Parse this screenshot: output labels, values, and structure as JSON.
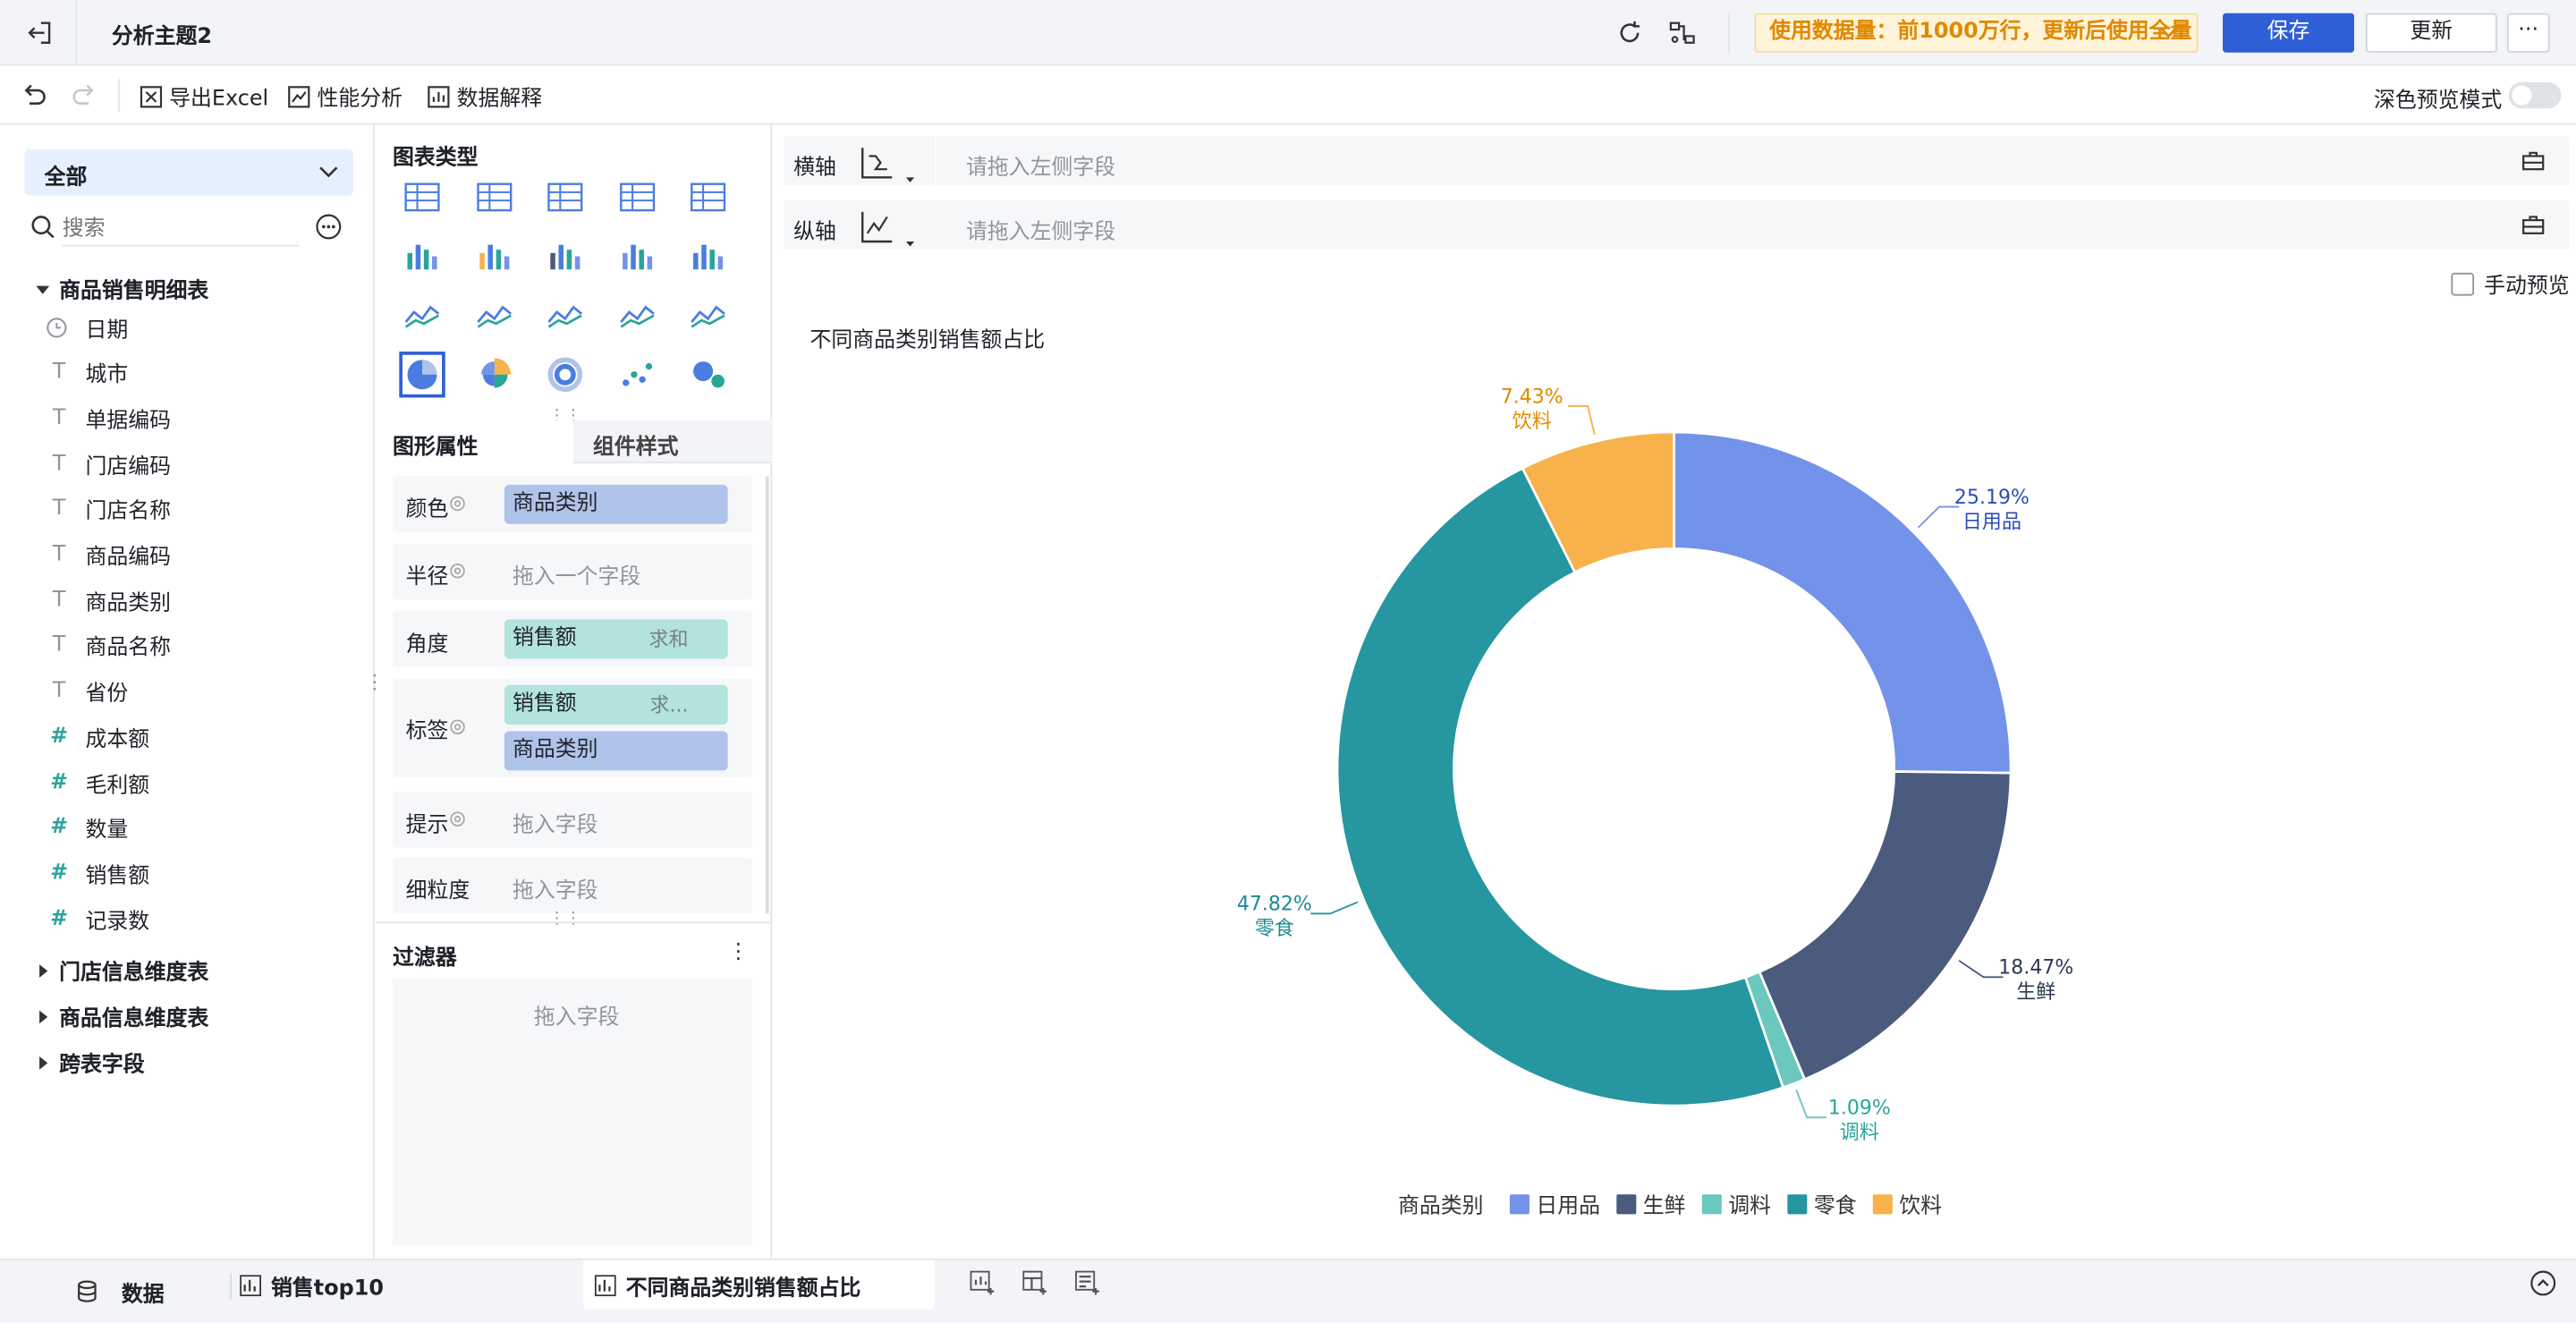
{
  "topbar": {
    "title": "分析主题2",
    "notice": "使用数据量：前1000万行，更新后使用全量",
    "save": "保存",
    "update": "更新",
    "more": "···"
  },
  "toolbar": {
    "export": "导出Excel",
    "perf": "性能分析",
    "explain": "数据解释",
    "dark_preview": "深色预览模式"
  },
  "left": {
    "scope": "全部",
    "search_placeholder": "搜索",
    "table1": "商品销售明细表",
    "fields": [
      {
        "name": "日期",
        "type": "date"
      },
      {
        "name": "城市",
        "type": "text"
      },
      {
        "name": "单据编码",
        "type": "text"
      },
      {
        "name": "门店编码",
        "type": "text"
      },
      {
        "name": "门店名称",
        "type": "text"
      },
      {
        "name": "商品编码",
        "type": "text"
      },
      {
        "name": "商品类别",
        "type": "text"
      },
      {
        "name": "商品名称",
        "type": "text"
      },
      {
        "name": "省份",
        "type": "text"
      },
      {
        "name": "成本额",
        "type": "number"
      },
      {
        "name": "毛利额",
        "type": "number"
      },
      {
        "name": "数量",
        "type": "number"
      },
      {
        "name": "销售额",
        "type": "number"
      },
      {
        "name": "记录数",
        "type": "number"
      }
    ],
    "groups": [
      "门店信息维度表",
      "商品信息维度表",
      "跨表字段"
    ]
  },
  "mid": {
    "chart_type_title": "图表类型",
    "tab_props": "图形属性",
    "tab_style": "组件样式",
    "color_label": "颜色",
    "color_field": "商品类别",
    "radius_label": "半径",
    "radius_placeholder": "拖入一个字段",
    "angle_label": "角度",
    "angle_field": "销售额",
    "angle_agg": "求和",
    "label_label": "标签",
    "label_field1": "销售额",
    "label_agg1": "求...",
    "label_field2": "商品类别",
    "tooltip_label": "提示",
    "tooltip_placeholder": "拖入字段",
    "granularity_label": "细粒度",
    "granularity_placeholder": "拖入字段",
    "filter_title": "过滤器",
    "filter_placeholder": "拖入字段"
  },
  "axis": {
    "x_label": "横轴",
    "y_label": "纵轴",
    "x_placeholder": "请拖入左侧字段",
    "y_placeholder": "请拖入左侧字段",
    "manual_preview": "手动预览"
  },
  "bottom": {
    "data_tab": "数据",
    "tab1": "销售top10",
    "tab2": "不同商品类别销售额占比"
  },
  "colors": {
    "日用品": "#7393ea",
    "生鲜": "#4a5b7e",
    "调料": "#6cc7be",
    "零食": "#2696a0",
    "饮料": "#f7b24b"
  },
  "chart_data": {
    "type": "pie",
    "title": "不同商品类别销售额占比",
    "legend_title": "商品类别",
    "legend_position": "bottom",
    "donut": true,
    "categories": [
      "日用品",
      "生鲜",
      "调料",
      "零食",
      "饮料"
    ],
    "values": [
      25.19,
      18.47,
      1.09,
      47.82,
      7.43
    ],
    "labels": [
      "25.19%",
      "18.47%",
      "1.09%",
      "47.82%",
      "7.43%"
    ],
    "label_colors": [
      "#2b4fb8",
      "#2d3a52",
      "#2aa59a",
      "#1f8a93",
      "#e08a00"
    ]
  }
}
